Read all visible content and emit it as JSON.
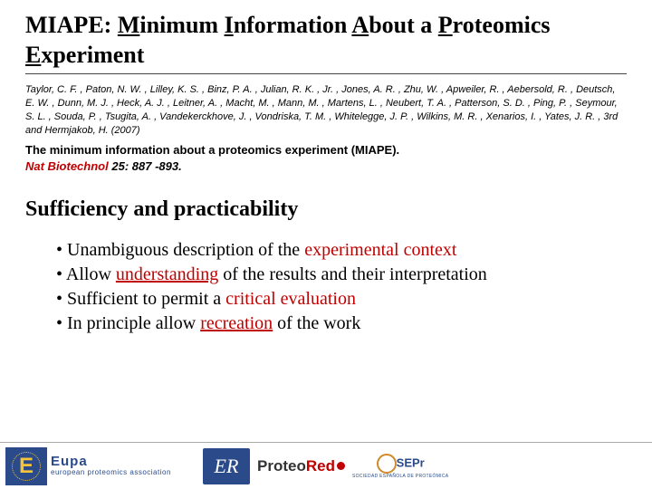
{
  "title": {
    "parts": [
      {
        "t": "MIAPE: ",
        "u": false
      },
      {
        "t": "M",
        "u": true
      },
      {
        "t": "inimum ",
        "u": false
      },
      {
        "t": "I",
        "u": true
      },
      {
        "t": "nformation ",
        "u": false
      },
      {
        "t": "A",
        "u": true
      },
      {
        "t": "bout a ",
        "u": false
      },
      {
        "t": "P",
        "u": true
      },
      {
        "t": "roteomics ",
        "u": false
      },
      {
        "t": "E",
        "u": true
      },
      {
        "t": "xperiment",
        "u": false
      }
    ]
  },
  "authors": "Taylor, C. F. , Paton, N. W. , Lilley, K. S. , Binz, P. A. , Julian, R. K. , Jr. , Jones, A. R. , Zhu, W. , Apweiler, R. , Aebersold, R. , Deutsch, E. W. , Dunn, M. J. , Heck, A. J. , Leitner, A. , Macht, M. , Mann, M. , Martens, L. , Neubert, T. A. , Patterson, S. D. , Ping, P. , Seymour, S. L. , Souda, P. , Tsugita, A. , Vandekerckhove, J. , Vondriska, T. M. , Whitelegge, J. P. , Wilkins, M. R. , Xenarios, I. , Yates, J. R. , 3rd and Hermjakob, H. (2007)",
  "citation": {
    "article": "The minimum information about a proteomics experiment (MIAPE).",
    "journal": "Nat Biotechnol",
    "vol": "25",
    "pages": ": 887 -893."
  },
  "subhead": "Sufficiency and practicability",
  "bullets": [
    [
      {
        "t": "• Unambiguous description of the ",
        "hl": false
      },
      {
        "t": "experimental context",
        "hl": true
      }
    ],
    [
      {
        "t": "• Allow ",
        "hl": false
      },
      {
        "t": "understanding",
        "hl": true,
        "u": true
      },
      {
        "t": " of the results and their interpretation",
        "hl": false
      }
    ],
    [
      {
        "t": "• Sufficient to permit a ",
        "hl": false
      },
      {
        "t": "critical evaluation",
        "hl": true
      }
    ],
    [
      {
        "t": "• In principle allow ",
        "hl": false
      },
      {
        "t": "recreation",
        "hl": true,
        "u": true
      },
      {
        "t": " of the work",
        "hl": false
      }
    ]
  ],
  "footer": {
    "eupa_e": "E",
    "eupa_title": "Eupa",
    "eupa_sub": "european proteomics association",
    "er": "ER",
    "proteored_a": "Proteo",
    "proteored_b": "Red",
    "sepro": "SEPr",
    "sepro_sub": "SOCIEDAD ESPAÑOLA DE PROTEÓMICA"
  },
  "colors": {
    "accent_red": "#c00000",
    "eu_blue": "#2a4a8a",
    "eu_gold": "#f6c437"
  }
}
